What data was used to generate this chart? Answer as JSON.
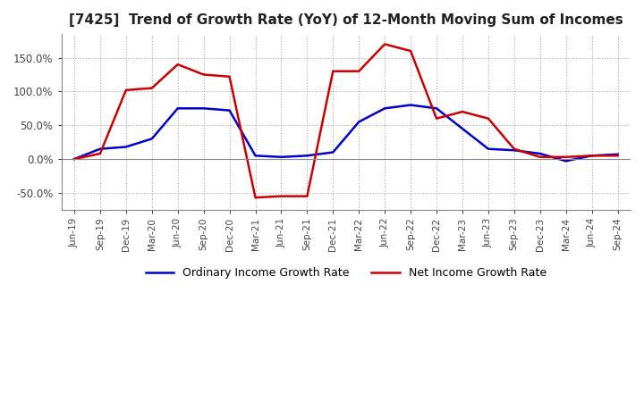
{
  "title": "[7425]  Trend of Growth Rate (YoY) of 12-Month Moving Sum of Incomes",
  "title_fontsize": 11,
  "ylim": [
    -75,
    185
  ],
  "yticks": [
    -50,
    0,
    50,
    100,
    150
  ],
  "ytick_labels": [
    "-50.0%",
    "0.0%",
    "50.0%",
    "100.0%",
    "150.0%"
  ],
  "legend_labels": [
    "Ordinary Income Growth Rate",
    "Net Income Growth Rate"
  ],
  "legend_colors": [
    "#0000cc",
    "#cc0000"
  ],
  "background_color": "#ffffff",
  "grid_color": "#aaaaaa",
  "x_labels": [
    "Jun-19",
    "Sep-19",
    "Dec-19",
    "Mar-20",
    "Jun-20",
    "Sep-20",
    "Dec-20",
    "Mar-21",
    "Jun-21",
    "Sep-21",
    "Dec-21",
    "Mar-22",
    "Jun-22",
    "Sep-22",
    "Dec-22",
    "Mar-23",
    "Jun-23",
    "Sep-23",
    "Dec-23",
    "Mar-24",
    "Jun-24",
    "Sep-24"
  ],
  "ordinary_income": [
    0,
    15,
    18,
    30,
    75,
    75,
    72,
    5,
    3,
    5,
    10,
    55,
    75,
    80,
    75,
    45,
    15,
    13,
    8,
    -3,
    5,
    7
  ],
  "net_income": [
    0,
    8,
    102,
    105,
    140,
    125,
    122,
    -57,
    -55,
    -55,
    130,
    130,
    170,
    160,
    60,
    70,
    60,
    15,
    3,
    3,
    5,
    5
  ]
}
